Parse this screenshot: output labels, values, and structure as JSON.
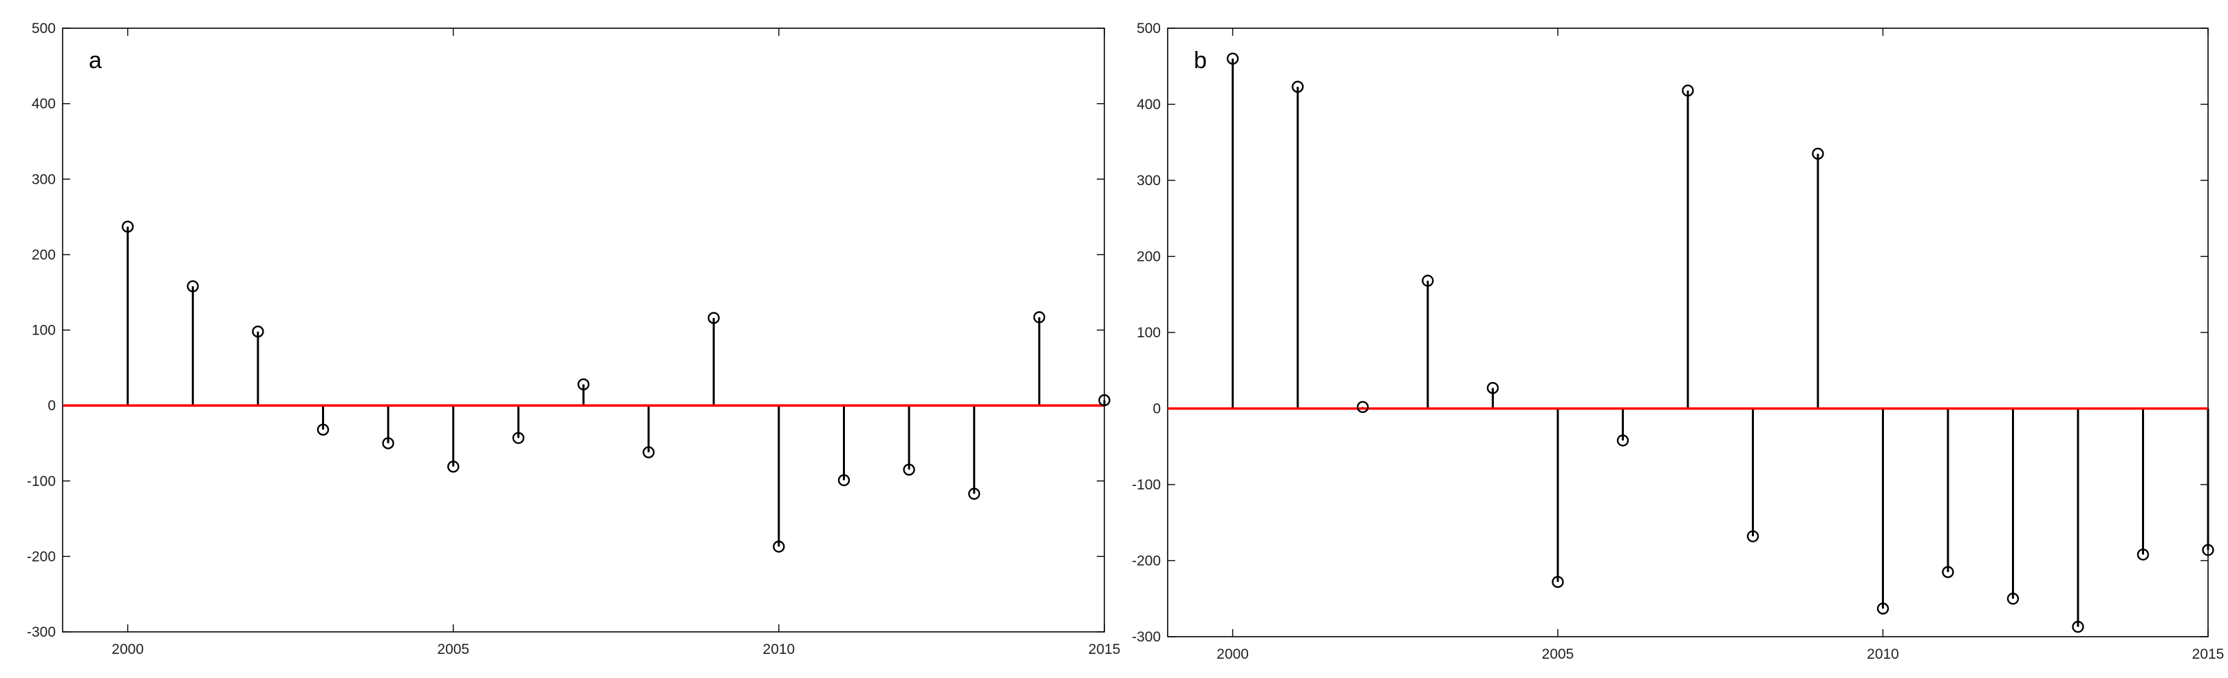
{
  "chart_data": [
    {
      "type": "stem",
      "panel_label": "a",
      "x": [
        2000,
        2001,
        2002,
        2003,
        2004,
        2005,
        2006,
        2007,
        2008,
        2009,
        2010,
        2011,
        2012,
        2013,
        2014,
        2015
      ],
      "values": [
        237,
        158,
        98,
        -32,
        -50,
        -81,
        -43,
        28,
        -62,
        116,
        -187,
        -99,
        -85,
        -117,
        117,
        7
      ],
      "xlim": [
        1999,
        2015
      ],
      "ylim": [
        -300,
        500
      ],
      "xticks": [
        2000,
        2005,
        2010,
        2015
      ],
      "yticks": [
        -300,
        -200,
        -100,
        0,
        100,
        200,
        300,
        400,
        500
      ],
      "baseline": 0,
      "colors": {
        "stem": "#000000",
        "baseline": "#ff0000"
      },
      "grid": false
    },
    {
      "type": "stem",
      "panel_label": "b",
      "x": [
        2000,
        2001,
        2002,
        2003,
        2004,
        2005,
        2006,
        2007,
        2008,
        2009,
        2010,
        2011,
        2012,
        2013,
        2014,
        2015
      ],
      "values": [
        460,
        423,
        2,
        168,
        27,
        -228,
        -42,
        418,
        -168,
        335,
        -263,
        -215,
        -250,
        -287,
        -192,
        -186
      ],
      "xlim": [
        1999,
        2015
      ],
      "ylim": [
        -300,
        500
      ],
      "xticks": [
        2000,
        2005,
        2010,
        2015
      ],
      "yticks": [
        -300,
        -200,
        -100,
        0,
        100,
        200,
        300,
        400,
        500
      ],
      "baseline": 0,
      "colors": {
        "stem": "#000000",
        "baseline": "#ff0000"
      },
      "grid": false
    }
  ]
}
